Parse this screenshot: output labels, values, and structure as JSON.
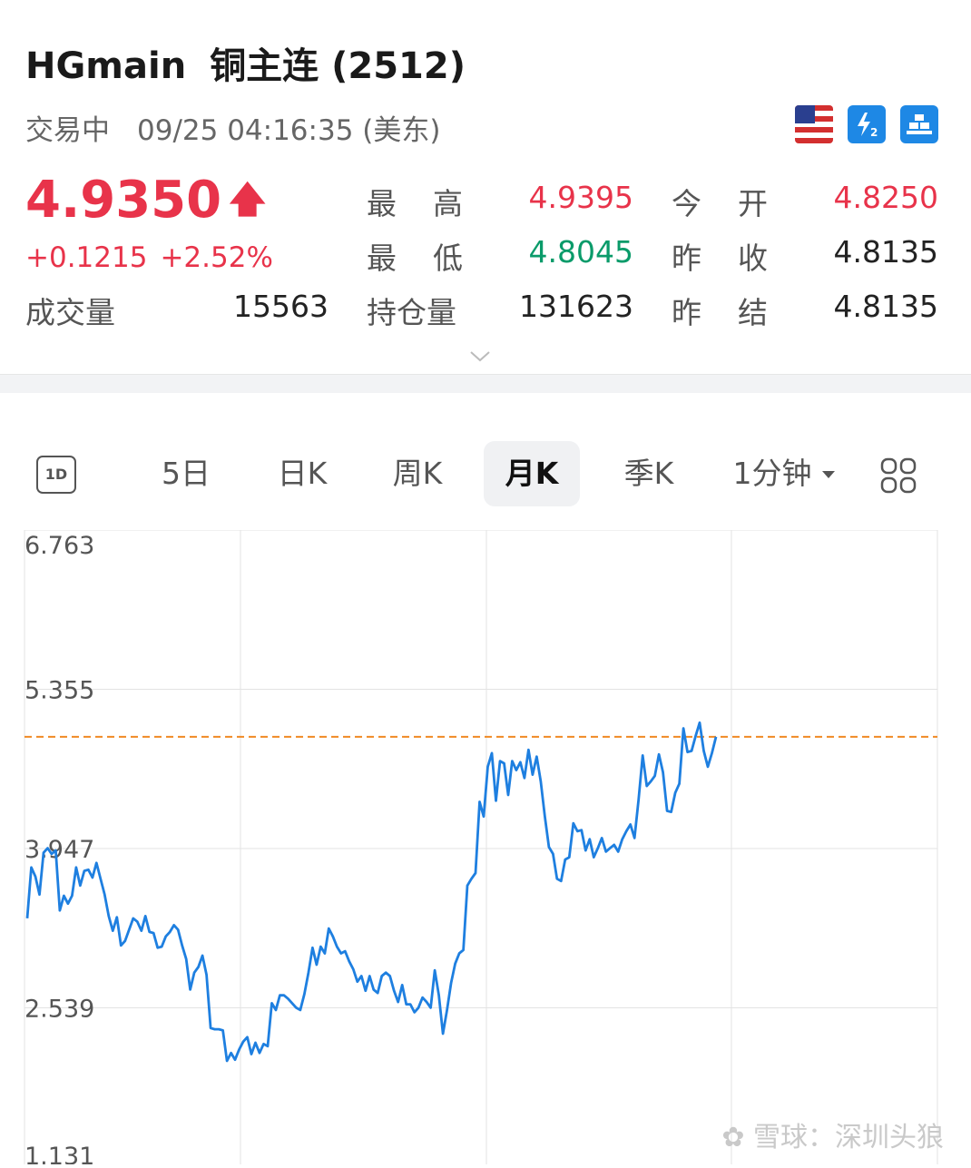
{
  "header": {
    "symbol": "HGmain",
    "name": "铜主连 (2512)",
    "status": "交易中",
    "datetime": "09/25 04:16:35 (美东)",
    "badges": [
      "us-flag-icon",
      "level2-icon",
      "gold-bars-icon"
    ]
  },
  "quote": {
    "price": "4.9350",
    "direction": "up",
    "change": "+0.1215",
    "change_pct": "+2.52%",
    "volume_label": "成交量",
    "volume": "15563",
    "high_label": "最高",
    "high": "4.9395",
    "low_label": "最低",
    "low": "4.8045",
    "open_interest_label": "持仓量",
    "open_interest": "131623",
    "open_label": "今开",
    "open": "4.8250",
    "prev_close_label": "昨收",
    "prev_close": "4.8135",
    "prev_settle_label": "昨结",
    "prev_settle": "4.8135"
  },
  "tabs": {
    "items": [
      "1D",
      "5日",
      "日K",
      "周K",
      "月K",
      "季K",
      "1分钟"
    ],
    "active": "月K"
  },
  "watermark": "雪球：深圳头狼",
  "colors": {
    "up": "#e8334a",
    "down": "#0a9b6a",
    "line": "#1e7fe0",
    "ref_line": "#f08a24"
  },
  "chart_data": {
    "type": "line",
    "ylim": [
      1.131,
      6.763
    ],
    "y_ticks": [
      "6.763",
      "5.355",
      "3.947",
      "2.539",
      "1.131"
    ],
    "reference_line": 4.935,
    "series": [
      {
        "values": [
          3.33,
          3.78,
          3.7,
          3.54,
          3.91,
          3.95,
          3.9,
          3.93,
          3.4,
          3.53,
          3.46,
          3.53,
          3.78,
          3.62,
          3.75,
          3.76,
          3.69,
          3.82,
          3.68,
          3.54,
          3.35,
          3.22,
          3.34,
          3.09,
          3.13,
          3.23,
          3.33,
          3.3,
          3.22,
          3.35,
          3.21,
          3.2,
          3.07,
          3.08,
          3.17,
          3.21,
          3.27,
          3.23,
          3.09,
          2.97,
          2.7,
          2.85,
          2.9,
          3.0,
          2.83,
          2.36,
          2.35,
          2.35,
          2.34,
          2.07,
          2.14,
          2.08,
          2.17,
          2.24,
          2.28,
          2.13,
          2.23,
          2.14,
          2.22,
          2.2,
          2.58,
          2.52,
          2.65,
          2.65,
          2.62,
          2.58,
          2.54,
          2.52,
          2.66,
          2.85,
          3.07,
          2.92,
          3.08,
          3.02,
          3.24,
          3.17,
          3.08,
          3.02,
          3.04,
          2.95,
          2.88,
          2.77,
          2.82,
          2.69,
          2.82,
          2.7,
          2.67,
          2.82,
          2.85,
          2.82,
          2.69,
          2.59,
          2.74,
          2.57,
          2.57,
          2.5,
          2.54,
          2.63,
          2.59,
          2.54,
          2.87,
          2.65,
          2.31,
          2.52,
          2.76,
          2.93,
          3.02,
          3.05,
          3.62,
          3.68,
          3.73,
          4.36,
          4.23,
          4.67,
          4.79,
          4.37,
          4.72,
          4.7,
          4.42,
          4.72,
          4.64,
          4.71,
          4.57,
          4.82,
          4.6,
          4.76,
          4.54,
          4.23,
          3.96,
          3.9,
          3.68,
          3.66,
          3.85,
          3.87,
          4.17,
          4.1,
          4.11,
          3.93,
          4.03,
          3.87,
          3.95,
          4.04,
          3.92,
          3.95,
          3.98,
          3.92,
          4.03,
          4.1,
          4.16,
          4.04,
          4.38,
          4.77,
          4.5,
          4.54,
          4.59,
          4.78,
          4.62,
          4.28,
          4.27,
          4.44,
          4.52,
          5.01,
          4.8,
          4.81,
          4.94,
          5.06,
          4.81,
          4.67,
          4.79,
          4.935
        ]
      }
    ]
  }
}
